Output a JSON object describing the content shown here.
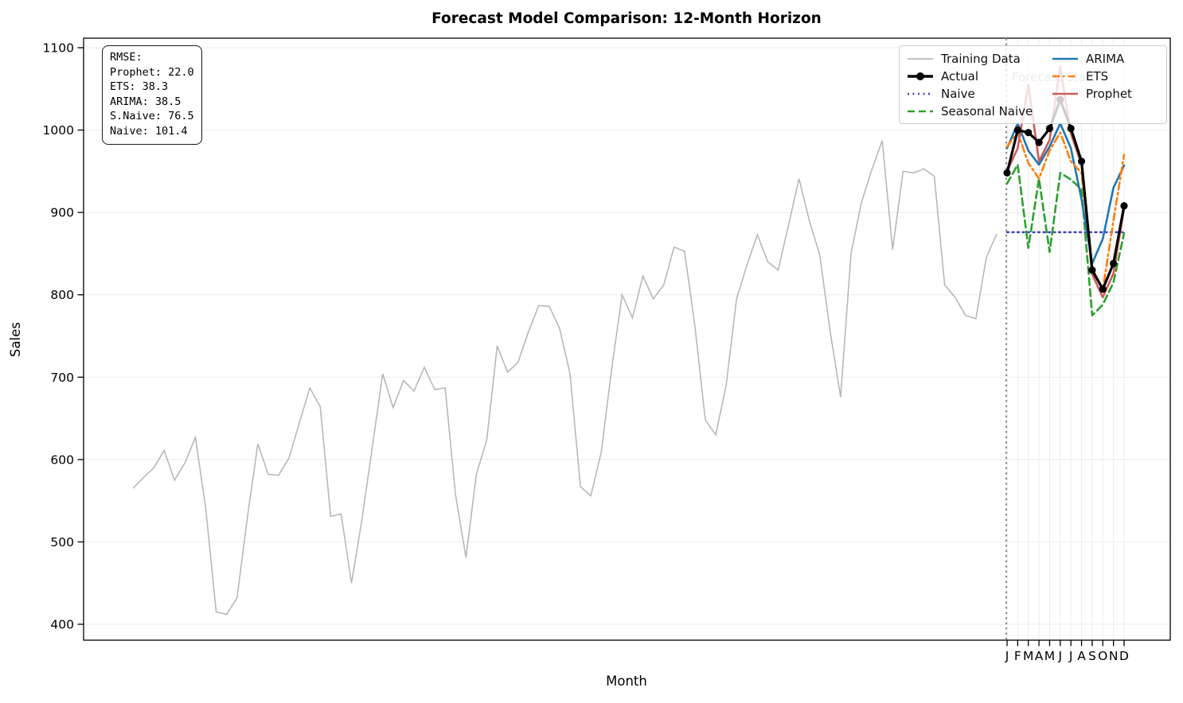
{
  "title": "Forecast Model Comparison: 12-Month Horizon",
  "annotations": {
    "forecast_start_label": "Forecast Start",
    "rmse_lines": [
      "RMSE:",
      "Prophet: 22.0",
      "ETS: 38.3",
      "ARIMA: 38.5",
      "S.Naive: 76.5",
      "Naive: 101.4"
    ]
  },
  "legend": {
    "column1": [
      "training",
      "actual",
      "naive",
      "seasonal"
    ],
    "column2": [
      "arima",
      "ets",
      "prophet"
    ]
  },
  "colors": {
    "grid": "#ebebeb",
    "spine": "#000000",
    "forecast_start_line": "#909090",
    "forecast_start_text": "#999999",
    "tick_text": "#000000"
  },
  "chart_data": {
    "type": "line",
    "title": "Forecast Model Comparison: 12-Month Horizon",
    "xlabel": "Month",
    "ylabel": "Sales",
    "ylim": [
      381,
      1112
    ],
    "yticks": [
      400,
      500,
      600,
      700,
      800,
      900,
      1000,
      1100
    ],
    "x_tick_labels": [
      "J",
      "F",
      "M",
      "A",
      "M",
      "J",
      "J",
      "A",
      "S",
      "O",
      "N",
      "D"
    ],
    "grid": true,
    "legend_position": "upper right",
    "rmse": {
      "Prophet": 22.0,
      "ETS": 38.3,
      "ARIMA": 38.5,
      "S.Naive": 76.5,
      "Naive": 101.4
    },
    "training": {
      "key": "training",
      "name": "Training Data",
      "color": "#b8b8b8",
      "style": "solid",
      "lw": 1.6,
      "values": [
        565,
        578,
        590,
        611,
        575,
        596,
        627,
        540,
        415,
        412,
        432,
        530,
        619,
        582,
        581,
        602,
        645,
        687,
        664,
        531,
        534,
        450,
        527,
        615,
        704,
        663,
        696,
        683,
        712,
        685,
        687,
        557,
        481,
        582,
        624,
        738,
        706,
        718,
        755,
        787,
        786,
        759,
        704,
        567,
        556,
        609,
        710,
        800,
        772,
        823,
        795,
        812,
        858,
        853,
        762,
        648,
        630,
        690,
        795,
        836,
        873,
        840,
        830,
        885,
        941,
        890,
        848,
        755,
        676,
        850,
        912,
        952,
        987,
        855,
        950,
        948,
        953,
        944,
        812,
        797,
        775,
        771,
        845,
        874
      ]
    },
    "forecast_series": [
      {
        "key": "naive",
        "name": "Naive",
        "color": "#4040c0",
        "style": "dotted",
        "lw": 2.4,
        "marker": false,
        "values": [
          876,
          876,
          876,
          876,
          876,
          876,
          876,
          876,
          876,
          876,
          876,
          876
        ]
      },
      {
        "key": "seasonal",
        "name": "Seasonal Naive",
        "color": "#2ca02c",
        "style": "dashed",
        "lw": 2.6,
        "marker": false,
        "values": [
          935,
          958,
          857,
          941,
          852,
          948,
          940,
          928,
          775,
          788,
          815,
          875
        ]
      },
      {
        "key": "arima",
        "name": "ARIMA",
        "color": "#1f77b4",
        "style": "solid",
        "lw": 2.6,
        "marker": false,
        "values": [
          978,
          1008,
          975,
          958,
          980,
          1008,
          978,
          916,
          838,
          868,
          930,
          957
        ]
      },
      {
        "key": "ets",
        "name": "ETS",
        "color": "#ff7f0e",
        "style": "dashdot",
        "lw": 2.6,
        "marker": false,
        "values": [
          980,
          997,
          960,
          941,
          975,
          997,
          962,
          948,
          832,
          806,
          890,
          970
        ]
      },
      {
        "key": "prophet",
        "name": "Prophet",
        "color": "#cd5c5c",
        "style": "solid",
        "lw": 2.6,
        "marker": false,
        "values": [
          950,
          978,
          1055,
          962,
          988,
          1077,
          996,
          958,
          825,
          797,
          826,
          905
        ]
      },
      {
        "key": "actual",
        "name": "Actual",
        "color": "#000000",
        "style": "solid",
        "lw": 3.2,
        "marker": true,
        "values": [
          948,
          1000,
          997,
          985,
          1002,
          1037,
          1002,
          962,
          830,
          807,
          838,
          908
        ]
      }
    ]
  }
}
